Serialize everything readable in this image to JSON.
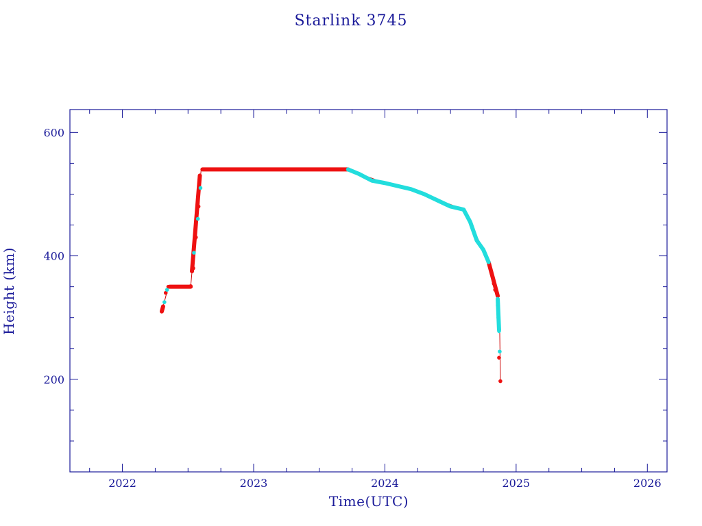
{
  "chart_data": {
    "type": "scatter",
    "title": "Starlink 3745",
    "xlabel": "Time(UTC)",
    "ylabel": "Height (km)",
    "xlim": [
      2021.6,
      2026.15
    ],
    "ylim": [
      50,
      637
    ],
    "x_ticks": [
      2022,
      2023,
      2024,
      2025,
      2026
    ],
    "y_ticks": [
      200,
      400,
      600
    ],
    "x_minor_step": 0.25,
    "y_minor_step": 50,
    "grid": false,
    "colors": {
      "axes": "#1a1a99",
      "line": "#cc0000",
      "red_series": "#ee1111",
      "cyan_series": "#22dddd"
    },
    "series": [
      {
        "color_key": "red_series",
        "segments": [
          {
            "x": [
              2022.3,
              2022.31
            ],
            "y": [
              310,
              318
            ]
          },
          {
            "x": [
              2022.36,
              2022.52
            ],
            "y": [
              350,
              350
            ]
          },
          {
            "x": [
              2022.53,
              2022.59
            ],
            "y": [
              375,
              530
            ]
          },
          {
            "x": [
              2022.61,
              2023.72
            ],
            "y": [
              540,
              540
            ]
          },
          {
            "x": [
              2024.79,
              2024.86
            ],
            "y": [
              390,
              335
            ]
          }
        ],
        "points": [
          {
            "x": 2022.3,
            "y": 310
          },
          {
            "x": 2022.31,
            "y": 318
          },
          {
            "x": 2022.33,
            "y": 340
          },
          {
            "x": 2022.35,
            "y": 350
          },
          {
            "x": 2022.52,
            "y": 351
          },
          {
            "x": 2022.54,
            "y": 380
          },
          {
            "x": 2022.56,
            "y": 430
          },
          {
            "x": 2022.58,
            "y": 480
          },
          {
            "x": 2022.59,
            "y": 530
          },
          {
            "x": 2024.79,
            "y": 390
          },
          {
            "x": 2024.81,
            "y": 375
          },
          {
            "x": 2024.83,
            "y": 355
          },
          {
            "x": 2024.84,
            "y": 345
          },
          {
            "x": 2024.86,
            "y": 330
          },
          {
            "x": 2024.87,
            "y": 235
          },
          {
            "x": 2024.88,
            "y": 197
          }
        ]
      },
      {
        "color_key": "cyan_series",
        "segments": [
          {
            "x": [
              2023.72,
              2023.8,
              2023.9,
              2024.0,
              2024.1,
              2024.2,
              2024.3,
              2024.4,
              2024.5,
              2024.6,
              2024.65,
              2024.7,
              2024.75,
              2024.79
            ],
            "y": [
              540,
              533,
              522,
              518,
              513,
              508,
              500,
              490,
              480,
              475,
              455,
              425,
              410,
              390
            ]
          },
          {
            "x": [
              2024.86,
              2024.865,
              2024.87
            ],
            "y": [
              330,
              305,
              280
            ]
          }
        ],
        "points": [
          {
            "x": 2022.32,
            "y": 325
          },
          {
            "x": 2022.34,
            "y": 345
          },
          {
            "x": 2022.545,
            "y": 405
          },
          {
            "x": 2022.575,
            "y": 460
          },
          {
            "x": 2022.595,
            "y": 510
          },
          {
            "x": 2024.86,
            "y": 320
          },
          {
            "x": 2024.865,
            "y": 300
          },
          {
            "x": 2024.87,
            "y": 278
          },
          {
            "x": 2024.875,
            "y": 245
          }
        ]
      }
    ],
    "connecting_line": {
      "x": [
        2022.3,
        2022.35,
        2022.52,
        2022.6,
        2023.72,
        2024.0,
        2024.3,
        2024.6,
        2024.75,
        2024.82,
        2024.86,
        2024.875,
        2024.88
      ],
      "y": [
        310,
        350,
        350,
        540,
        540,
        518,
        500,
        475,
        410,
        370,
        330,
        280,
        197
      ]
    }
  }
}
